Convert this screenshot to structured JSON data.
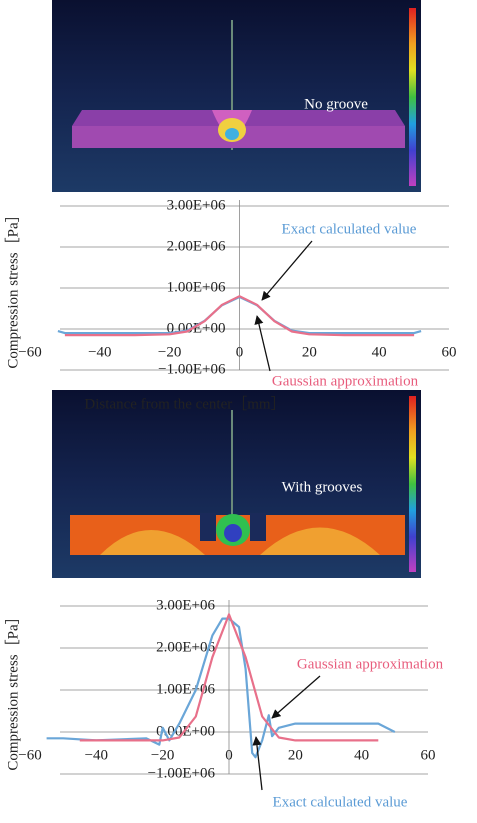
{
  "images": [
    {
      "label": "No groove"
    },
    {
      "label": "With grooves"
    }
  ],
  "chart_data": [
    {
      "type": "line",
      "y_label": "Compression stress［Pa］",
      "x_label": "Distance from the center［mm］",
      "xlim": [
        -60,
        60
      ],
      "ylim": [
        -1000000,
        3000000
      ],
      "xticks": [
        {
          "value": -60,
          "label": "−60"
        },
        {
          "value": -40,
          "label": "−40"
        },
        {
          "value": -20,
          "label": "−20"
        },
        0,
        20,
        40,
        60
      ],
      "yticks": [
        {
          "value": 3000000,
          "label": "3.00E+06"
        },
        {
          "value": 2000000,
          "label": "2.00E+06"
        },
        {
          "value": 1000000,
          "label": "1.00E+06"
        },
        {
          "value": 0,
          "label": "0.00E+00"
        },
        {
          "value": -1000000,
          "label": "−1.00E+06"
        }
      ],
      "grid": true,
      "series": [
        {
          "name": "Exact calculated value",
          "color": "#6aa6d8",
          "x": [
            -52,
            -50,
            -40,
            -30,
            -20,
            -15,
            -10,
            -5,
            0,
            5,
            10,
            15,
            20,
            30,
            40,
            50,
            52
          ],
          "values": [
            -50000,
            -100000,
            -100000,
            -100000,
            -100000,
            -40000,
            200000,
            580000,
            780000,
            580000,
            200000,
            -40000,
            -100000,
            -100000,
            -100000,
            -100000,
            -50000
          ]
        },
        {
          "name": "Gaussian approximation",
          "color": "#e8708a",
          "x": [
            -50,
            -40,
            -30,
            -20,
            -15,
            -10,
            -5,
            0,
            5,
            10,
            15,
            20,
            30,
            40,
            50
          ],
          "values": [
            -150000,
            -150000,
            -150000,
            -130000,
            -60000,
            190000,
            590000,
            800000,
            590000,
            190000,
            -60000,
            -130000,
            -150000,
            -150000,
            -150000
          ]
        }
      ],
      "annotations": [
        {
          "text": "Exact calculated value",
          "color": "#5b9bd5"
        },
        {
          "text": "Gaussian approximation",
          "color": "#e85d7d"
        }
      ]
    },
    {
      "type": "line",
      "y_label": "Compression stress［Pa］",
      "xlim": [
        -60,
        60
      ],
      "ylim": [
        -1000000,
        3000000
      ],
      "xticks": [
        {
          "value": -60,
          "label": "−60"
        },
        {
          "value": -40,
          "label": "−40"
        },
        {
          "value": -20,
          "label": "−20"
        },
        0,
        20,
        40,
        60
      ],
      "yticks": [
        {
          "value": 3000000,
          "label": "3.00E+06"
        },
        {
          "value": 2000000,
          "label": "2.00E+06"
        },
        {
          "value": 1000000,
          "label": "1.00E+06"
        },
        {
          "value": 0,
          "label": "0.00E+00"
        },
        {
          "value": -1000000,
          "label": "−1.00E+06"
        }
      ],
      "grid": true,
      "series": [
        {
          "name": "Exact calculated value",
          "color": "#6aa6d8",
          "x": [
            -55,
            -50,
            -40,
            -25,
            -21,
            -20,
            -18,
            -15,
            -10,
            -5,
            -2,
            0,
            3,
            5,
            7,
            8,
            10,
            12,
            13,
            15,
            20,
            30,
            40,
            45,
            50
          ],
          "values": [
            -150000,
            -150000,
            -200000,
            -150000,
            -300000,
            100000,
            -200000,
            200000,
            1000000,
            2300000,
            2700000,
            2700000,
            2500000,
            1500000,
            -500000,
            -600000,
            -200000,
            400000,
            -100000,
            100000,
            200000,
            200000,
            200000,
            200000,
            0
          ]
        },
        {
          "name": "Gaussian approximation",
          "color": "#e8708a",
          "x": [
            -45,
            -30,
            -20,
            -15,
            -10,
            -5,
            0,
            5,
            10,
            15,
            20,
            30,
            45
          ],
          "values": [
            -200000,
            -200000,
            -200000,
            -130000,
            370000,
            1780000,
            2800000,
            1780000,
            370000,
            -130000,
            -200000,
            -200000,
            -200000
          ]
        }
      ],
      "annotations": [
        {
          "text": "Gaussian approximation",
          "color": "#e85d7d"
        },
        {
          "text": "Exact calculated value",
          "color": "#5b9bd5"
        }
      ]
    }
  ]
}
